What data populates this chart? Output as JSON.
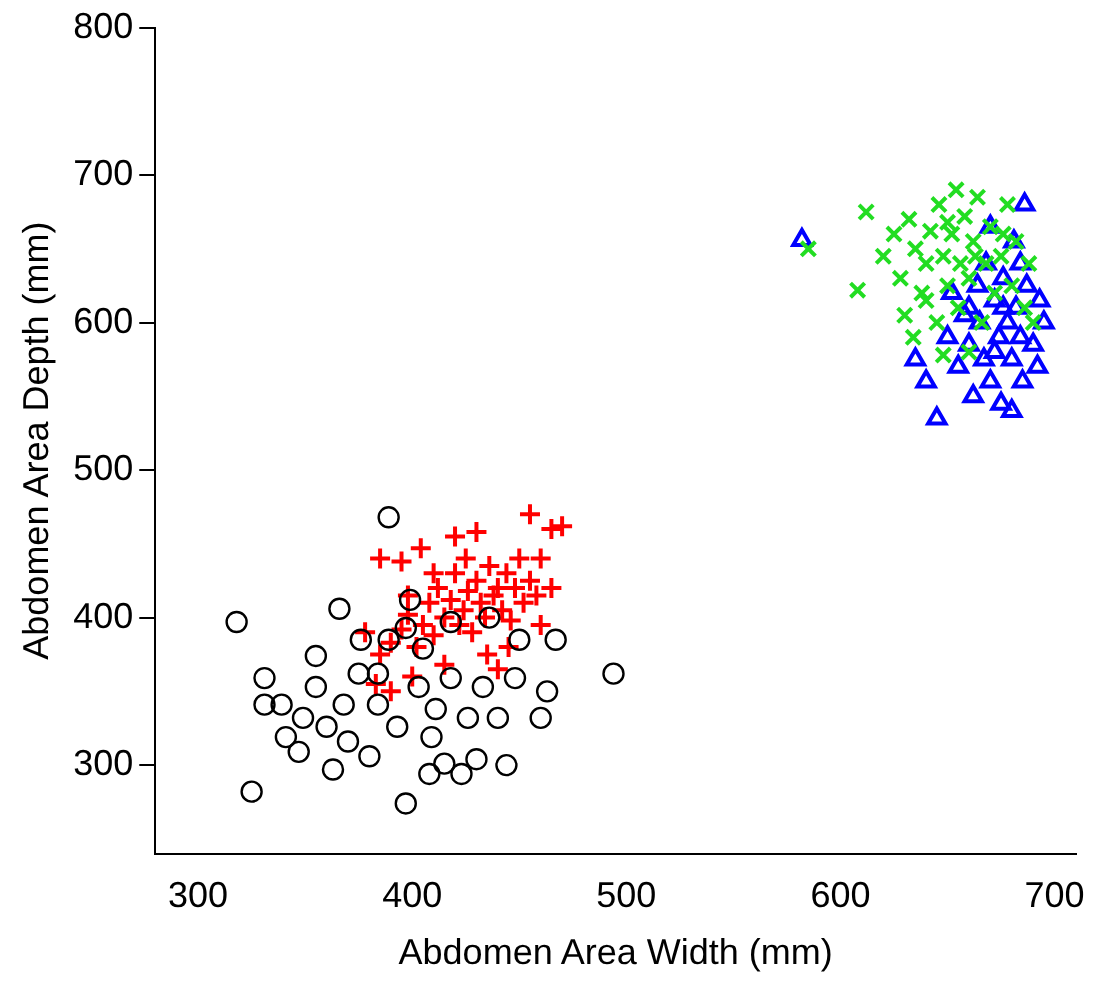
{
  "chart_data": {
    "type": "scatter",
    "xlabel": "Abdomen Area Width (mm)",
    "ylabel": "Abdomen Area Depth (mm)",
    "xlim": [
      280,
      710
    ],
    "xticks": [
      300,
      400,
      500,
      600,
      700
    ],
    "ylim": [
      240,
      800
    ],
    "yticks": [
      300,
      400,
      500,
      600,
      700,
      800
    ],
    "grid": false,
    "legend": false,
    "series": [
      {
        "color": "#000000",
        "marker": "circle",
        "x": [
          318,
          325,
          349,
          331,
          339,
          360,
          370,
          384,
          389,
          397,
          408,
          415,
          426,
          440,
          460,
          494,
          418,
          436,
          403,
          376,
          368,
          380,
          393,
          405,
          418,
          355,
          341,
          389,
          409,
          448,
          463,
          430,
          450,
          399,
          423,
          467,
          355,
          384,
          375,
          433,
          366,
          331,
          347,
          397,
          411,
          444,
          363
        ],
        "values": [
          397,
          282,
          332,
          359,
          341,
          326,
          316,
          362,
          468,
          274,
          294,
          301,
          332,
          332,
          332,
          362,
          397,
          400,
          353,
          385,
          341,
          306,
          326,
          379,
          359,
          353,
          319,
          385,
          319,
          359,
          350,
          304,
          385,
          412,
          294,
          385,
          374,
          341,
          362,
          353,
          406,
          341,
          309,
          393,
          338,
          300,
          297
        ]
      },
      {
        "color": "#ff0000",
        "marker": "cross",
        "x": [
          383,
          385,
          390,
          395,
          398,
          402,
          405,
          408,
          410,
          412,
          415,
          418,
          420,
          422,
          424,
          426,
          428,
          430,
          432,
          434,
          436,
          438,
          440,
          442,
          444,
          446,
          448,
          450,
          452,
          455,
          458,
          460,
          465,
          470,
          455,
          420,
          430,
          395,
          385,
          404,
          378,
          400,
          415,
          435,
          445,
          460,
          390,
          440,
          465,
          425,
          410,
          398
        ],
        "values": [
          355,
          375,
          383,
          392,
          402,
          380,
          395,
          410,
          388,
          420,
          400,
          412,
          430,
          395,
          405,
          418,
          390,
          425,
          410,
          400,
          435,
          415,
          420,
          405,
          430,
          398,
          420,
          440,
          410,
          425,
          415,
          440,
          460,
          462,
          470,
          455,
          458,
          438,
          440,
          447,
          390,
          360,
          368,
          375,
          380,
          395,
          350,
          365,
          420,
          440,
          430,
          415
        ]
      },
      {
        "color": "#22dd22",
        "marker": "x",
        "x": [
          585,
          608,
          612,
          620,
          625,
          628,
          630,
          632,
          635,
          638,
          640,
          642,
          645,
          646,
          648,
          650,
          652,
          654,
          655,
          656,
          658,
          660,
          662,
          664,
          666,
          668,
          670,
          672,
          675,
          678,
          680,
          682,
          686,
          688,
          690,
          634,
          648,
          660,
          676,
          640,
          663,
          650
        ],
        "values": [
          650,
          622,
          675,
          645,
          660,
          630,
          605,
          670,
          650,
          620,
          640,
          662,
          600,
          680,
          645,
          625,
          660,
          690,
          610,
          640,
          672,
          630,
          655,
          685,
          600,
          640,
          665,
          620,
          645,
          680,
          625,
          655,
          610,
          640,
          600,
          590,
          578,
          580,
          660,
          615,
          645,
          668
        ]
      },
      {
        "color": "#0000ff",
        "marker": "triangle",
        "x": [
          582,
          635,
          640,
          645,
          650,
          652,
          655,
          658,
          660,
          662,
          664,
          665,
          667,
          668,
          670,
          672,
          674,
          675,
          676,
          678,
          680,
          681,
          682,
          684,
          685,
          686,
          687,
          690,
          692,
          693,
          695,
          670,
          680,
          660,
          676,
          672,
          684
        ],
        "values": [
          656,
          575,
          560,
          535,
          590,
          620,
          570,
          605,
          585,
          550,
          625,
          600,
          575,
          640,
          560,
          615,
          590,
          545,
          630,
          600,
          575,
          655,
          610,
          590,
          560,
          680,
          625,
          585,
          570,
          615,
          600,
          665,
          540,
          610,
          610,
          580,
          640
        ]
      }
    ]
  }
}
